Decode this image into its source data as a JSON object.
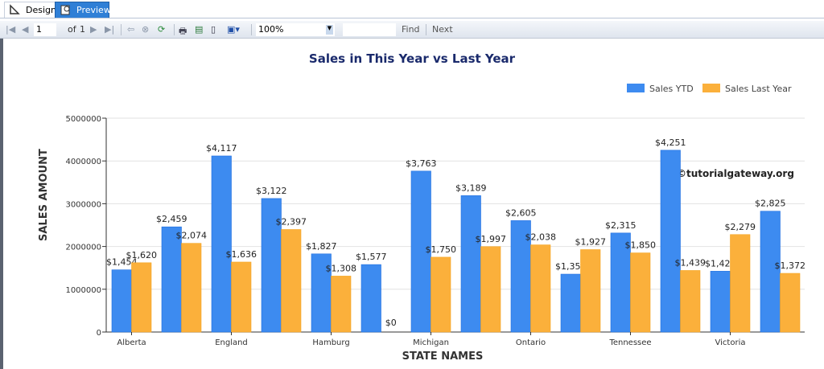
{
  "tabs": [
    {
      "label": "Design",
      "icon": "design-icon"
    },
    {
      "label": "Preview",
      "icon": "preview-icon"
    }
  ],
  "toolbar": {
    "page": "1",
    "of_label": "of",
    "total_pages": "1",
    "zoom": "100%",
    "find_value": "",
    "find_label": "Find",
    "next_label": "Next"
  },
  "watermark": "©tutorialgateway.org",
  "colors": {
    "sales_ytd": "#3d8bf0",
    "sales_last_year": "#fbb03b",
    "title": "#1a2a6c"
  },
  "chart_data": {
    "type": "bar",
    "title": "Sales in This Year vs Last Year",
    "xlabel": "STATE NAMES",
    "ylabel": "SALES AMOUNT",
    "ylim": [
      0,
      5000000
    ],
    "yticks": [
      "0",
      "1000000",
      "2000000",
      "3000000",
      "4000000",
      "5000000"
    ],
    "grid": true,
    "legend": "top-right",
    "categories": [
      "Alberta",
      "",
      "England",
      "",
      "Hamburg",
      "",
      "Michigan",
      "",
      "Ontario",
      "",
      "Tennessee",
      "",
      "Victoria",
      ""
    ],
    "series": [
      {
        "name": "Sales YTD",
        "values": [
          1454000,
          2459000,
          4117000,
          3122000,
          1827000,
          1577000,
          3763000,
          3189000,
          2605000,
          1353000,
          2315000,
          4251000,
          1422000,
          2825000
        ],
        "labels": [
          "$1,454",
          "$2,459",
          "$4,117",
          "$3,122",
          "$1,827",
          "$1,577",
          "$3,763",
          "$3,189",
          "$2,605",
          "$1,353",
          "$2,315",
          "$4,251",
          "$1,422",
          "$2,825"
        ]
      },
      {
        "name": "Sales Last Year",
        "values": [
          1620000,
          2074000,
          1636000,
          2397000,
          1308000,
          0,
          1750000,
          1997000,
          2038000,
          1927000,
          1850000,
          1439000,
          2279000,
          1372000
        ],
        "labels": [
          "$1,620",
          "$2,074",
          "$1,636",
          "$2,397",
          "$1,308",
          "$0",
          "$1,750",
          "$1,997",
          "$2,038",
          "$1,927",
          "$1,850",
          "$1,439",
          "$2,279",
          "$1,372"
        ]
      }
    ]
  }
}
